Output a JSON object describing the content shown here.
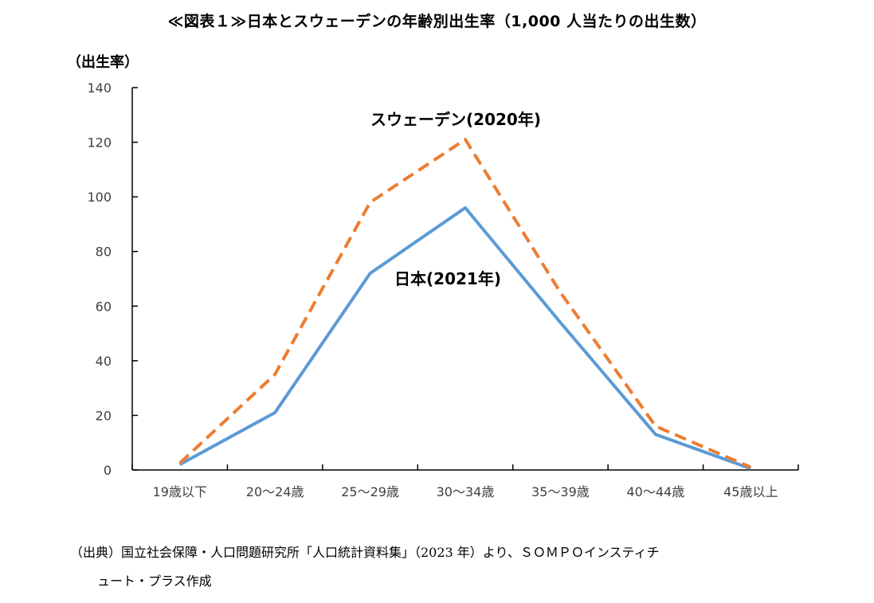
{
  "title": "≪図表１≫日本とスウェーデンの年齢別出生率（1,000 人当たりの出生数）",
  "source_line1": "（出典）国立社会保障・人口問題研究所「人口統計資料集」（2023 年）より、ＳＯＭＰＯインスティチ",
  "source_line2": "ュート・プラス作成",
  "colors": {
    "japan": "#5B9BD5",
    "sweden": "#ED7D31",
    "axis": "#000000",
    "tick_label": "#404040"
  },
  "chart_data": {
    "type": "line",
    "title": "≪図表１≫日本とスウェーデンの年齢別出生率（1,000 人当たりの出生数）",
    "xlabel": "",
    "ylabel": "（出生率）",
    "ylim": [
      0,
      140
    ],
    "yticks": [
      0,
      20,
      40,
      60,
      80,
      100,
      120,
      140
    ],
    "grid": false,
    "legend": "none (direct labels on series)",
    "categories": [
      "19歳以下",
      "20～24歳",
      "25～29歳",
      "30～34歳",
      "35～39歳",
      "40～44歳",
      "45歳以上"
    ],
    "series": [
      {
        "name": "日本(2021年)",
        "style": "solid",
        "color": "#5B9BD5",
        "values": [
          2,
          21,
          72,
          96,
          54,
          13,
          0.5
        ]
      },
      {
        "name": "スウェーデン(2020年)",
        "style": "dashed",
        "color": "#ED7D31",
        "values": [
          2.5,
          35,
          98,
          121,
          65,
          16,
          1
        ]
      }
    ]
  }
}
